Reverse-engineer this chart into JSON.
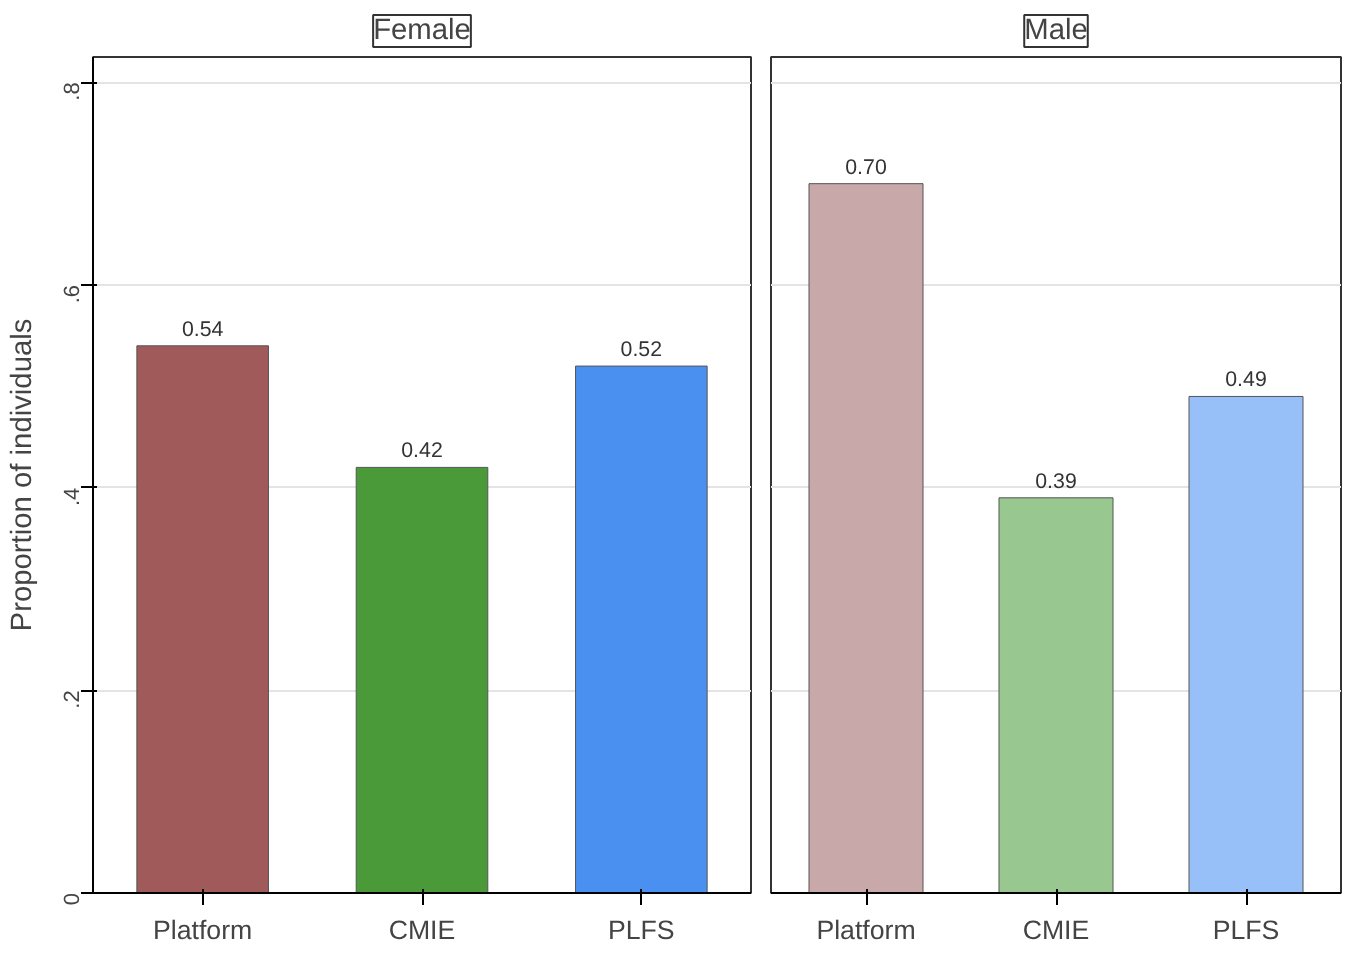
{
  "chart_data": [
    {
      "type": "bar",
      "title": "Female",
      "ylabel": "Proportion of individuals",
      "categories": [
        "Platform",
        "CMIE",
        "PLFS"
      ],
      "values": [
        0.54,
        0.42,
        0.52
      ],
      "value_labels": [
        "0.54",
        "0.42",
        "0.52"
      ],
      "colors": [
        "#a05a5a",
        "#4a9a3a",
        "#4a90f0"
      ],
      "ylim": [
        0,
        0.825
      ],
      "yticks": [
        0,
        {
          "value": 0.2,
          "label": ".2"
        },
        {
          "value": 0.4,
          "label": ".4"
        },
        {
          "value": 0.6,
          "label": ".6"
        },
        {
          "value": 0.8,
          "label": ".8"
        }
      ],
      "grid": "y"
    },
    {
      "type": "bar",
      "title": "Male",
      "categories": [
        "Platform",
        "CMIE",
        "PLFS"
      ],
      "values": [
        0.7,
        0.39,
        0.49
      ],
      "value_labels": [
        "0.70",
        "0.39",
        "0.49"
      ],
      "colors": [
        "#c8a8a8",
        "#98c890",
        "#98c0f8"
      ],
      "ylim": [
        0,
        0.825
      ],
      "yticks": [
        {
          "value": 0,
          "label": null
        },
        {
          "value": 0.2,
          "label": null
        },
        {
          "value": 0.4,
          "label": null
        },
        {
          "value": 0.6,
          "label": null
        },
        {
          "value": 0.8,
          "label": null
        }
      ],
      "grid": "y",
      "tick_labels": "x"
    }
  ]
}
